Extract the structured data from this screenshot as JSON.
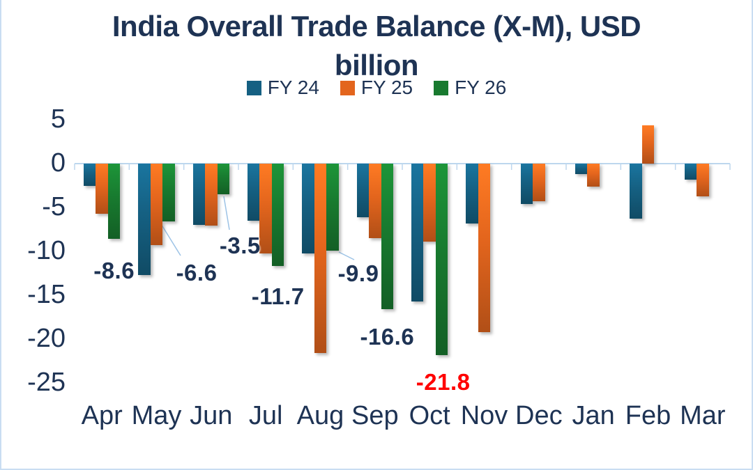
{
  "title": {
    "lines": [
      "India Overall Trade Balance (X-M), USD",
      "billion"
    ]
  },
  "chart_data": {
    "type": "bar",
    "title": "India Overall Trade Balance (X-M), USD billion",
    "categories": [
      "Apr",
      "May",
      "Jun",
      "Jul",
      "Aug",
      "Sep",
      "Oct",
      "Nov",
      "Dec",
      "Jan",
      "Feb",
      "Mar"
    ],
    "series": [
      {
        "name": "FY 24",
        "color": "#156082",
        "values": [
          -2.5,
          -12.7,
          -7.0,
          -6.5,
          -10.2,
          -6.1,
          -15.7,
          -6.8,
          -4.6,
          -1.2,
          -6.3,
          -1.8
        ]
      },
      {
        "name": "FY 25",
        "color": "#E3651D",
        "values": [
          -5.7,
          -9.3,
          -7.1,
          -10.2,
          -21.6,
          -8.5,
          -8.9,
          -19.2,
          -4.3,
          -2.6,
          4.4,
          -3.7
        ]
      },
      {
        "name": "FY 26",
        "color": "#187A2F",
        "values": [
          -8.6,
          -6.6,
          -3.5,
          -11.7,
          -9.9,
          -16.6,
          -21.8,
          null,
          null,
          null,
          null,
          null
        ]
      }
    ],
    "bar_labels": [
      {
        "category": "Apr",
        "series": "FY 26",
        "text": "-8.6",
        "color": "#1e3354"
      },
      {
        "category": "May",
        "series": "FY 26",
        "text": "-6.6",
        "color": "#1e3354"
      },
      {
        "category": "Jun",
        "series": "FY 26",
        "text": "-3.5",
        "color": "#1e3354"
      },
      {
        "category": "Jul",
        "series": "FY 26",
        "text": "-11.7",
        "color": "#1e3354"
      },
      {
        "category": "Aug",
        "series": "FY 26",
        "text": "-9.9",
        "color": "#1e3354"
      },
      {
        "category": "Sep",
        "series": "FY 26",
        "text": "-16.6",
        "color": "#1e3354"
      },
      {
        "category": "Oct",
        "series": "FY 26",
        "text": "-21.8",
        "color": "#FF0000"
      }
    ],
    "y_axis": {
      "ticks": [
        5,
        0,
        -5,
        -10,
        -15,
        -20,
        -25
      ],
      "min": -25,
      "max": 5
    },
    "xlabel": "",
    "ylabel": "",
    "grid": false,
    "legend_position": "top"
  },
  "colors": {
    "text": "#1e3354",
    "axis_line": "#bdd7ee",
    "callout_line": "#9dc3e6",
    "highlight": "#FF0000",
    "background": "#ffffff"
  }
}
